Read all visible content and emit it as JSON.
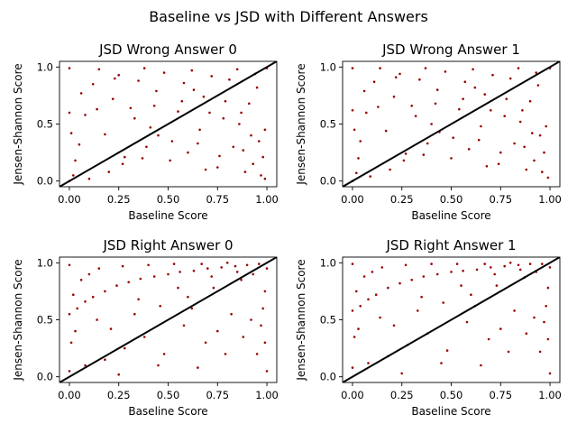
{
  "figure": {
    "suptitle": "Baseline vs JSD with Different Answers"
  },
  "colors": {
    "points": "#990000",
    "diagonal": "#000000",
    "axes": "#000000",
    "background": "#ffffff"
  },
  "chart_data": [
    {
      "type": "scatter",
      "title": "JSD Wrong Answer 0",
      "xlabel": "Baseline Score",
      "ylabel": "Jensen-Shannon Score",
      "xlim": [
        -0.05,
        1.05
      ],
      "ylim": [
        -0.05,
        1.05
      ],
      "xticks": [
        "0.00",
        "0.25",
        "0.50",
        "0.75",
        "1.00"
      ],
      "yticks": [
        "0.0",
        "0.5",
        "1.0"
      ],
      "reference_line": "y = x",
      "points": [
        [
          0.02,
          0.05
        ],
        [
          0.05,
          0.32
        ],
        [
          0.08,
          0.58
        ],
        [
          0.12,
          0.85
        ],
        [
          0.15,
          0.98
        ],
        [
          0.18,
          0.41
        ],
        [
          0.22,
          0.72
        ],
        [
          0.25,
          0.93
        ],
        [
          0.28,
          0.21
        ],
        [
          0.31,
          0.64
        ],
        [
          0.35,
          0.88
        ],
        [
          0.38,
          0.99
        ],
        [
          0.41,
          0.47
        ],
        [
          0.44,
          0.79
        ],
        [
          0.48,
          0.95
        ],
        [
          0.51,
          0.18
        ],
        [
          0.55,
          0.61
        ],
        [
          0.58,
          0.86
        ],
        [
          0.62,
          0.97
        ],
        [
          0.65,
          0.33
        ],
        [
          0.68,
          0.74
        ],
        [
          0.72,
          0.92
        ],
        [
          0.75,
          0.12
        ],
        [
          0.78,
          0.55
        ],
        [
          0.81,
          0.89
        ],
        [
          0.85,
          0.98
        ],
        [
          0.88,
          0.27
        ],
        [
          0.91,
          0.68
        ],
        [
          0.94,
          0.94
        ],
        [
          0.97,
          0.05
        ],
        [
          0.99,
          0.45
        ],
        [
          1.0,
          0.99
        ],
        [
          0.99,
          0.02
        ],
        [
          0.98,
          0.21
        ],
        [
          0.96,
          0.35
        ],
        [
          0.93,
          0.15
        ],
        [
          0.89,
          0.08
        ],
        [
          0.83,
          0.3
        ],
        [
          0.76,
          0.22
        ],
        [
          0.69,
          0.1
        ],
        [
          0.6,
          0.25
        ],
        [
          0.52,
          0.35
        ],
        [
          0.45,
          0.4
        ],
        [
          0.37,
          0.2
        ],
        [
          0.27,
          0.15
        ],
        [
          0.2,
          0.08
        ],
        [
          0.1,
          0.02
        ],
        [
          0.03,
          0.18
        ],
        [
          0.0,
          0.0
        ],
        [
          0.0,
          0.6
        ],
        [
          0.0,
          0.99
        ],
        [
          0.01,
          0.42
        ],
        [
          0.06,
          0.77
        ],
        [
          0.14,
          0.63
        ],
        [
          0.33,
          0.55
        ],
        [
          0.57,
          0.7
        ],
        [
          0.71,
          0.6
        ],
        [
          0.86,
          0.5
        ],
        [
          0.92,
          0.4
        ],
        [
          0.95,
          0.82
        ],
        [
          0.23,
          0.9
        ],
        [
          0.43,
          0.66
        ],
        [
          0.63,
          0.8
        ],
        [
          0.79,
          0.7
        ],
        [
          0.39,
          0.3
        ],
        [
          0.66,
          0.45
        ],
        [
          0.87,
          0.6
        ]
      ]
    },
    {
      "type": "scatter",
      "title": "JSD Wrong Answer 1",
      "xlabel": "Baseline Score",
      "ylabel": "Jensen-Shannon Score",
      "xlim": [
        -0.05,
        1.05
      ],
      "ylim": [
        -0.05,
        1.05
      ],
      "xticks": [
        "0.00",
        "0.25",
        "0.50",
        "0.75",
        "1.00"
      ],
      "yticks": [
        "0.0",
        "0.5",
        "1.0"
      ],
      "reference_line": "y = x",
      "points": [
        [
          0.02,
          0.07
        ],
        [
          0.04,
          0.35
        ],
        [
          0.07,
          0.6
        ],
        [
          0.11,
          0.87
        ],
        [
          0.14,
          0.99
        ],
        [
          0.17,
          0.44
        ],
        [
          0.21,
          0.74
        ],
        [
          0.24,
          0.94
        ],
        [
          0.27,
          0.24
        ],
        [
          0.3,
          0.66
        ],
        [
          0.34,
          0.89
        ],
        [
          0.37,
          0.99
        ],
        [
          0.4,
          0.5
        ],
        [
          0.43,
          0.8
        ],
        [
          0.47,
          0.96
        ],
        [
          0.5,
          0.2
        ],
        [
          0.54,
          0.63
        ],
        [
          0.57,
          0.87
        ],
        [
          0.61,
          0.98
        ],
        [
          0.64,
          0.36
        ],
        [
          0.67,
          0.76
        ],
        [
          0.71,
          0.93
        ],
        [
          0.74,
          0.15
        ],
        [
          0.77,
          0.57
        ],
        [
          0.8,
          0.9
        ],
        [
          0.84,
          0.99
        ],
        [
          0.87,
          0.3
        ],
        [
          0.9,
          0.7
        ],
        [
          0.93,
          0.95
        ],
        [
          0.96,
          0.08
        ],
        [
          0.98,
          0.48
        ],
        [
          1.0,
          0.99
        ],
        [
          0.99,
          0.03
        ],
        [
          0.97,
          0.25
        ],
        [
          0.95,
          0.4
        ],
        [
          0.92,
          0.18
        ],
        [
          0.88,
          0.1
        ],
        [
          0.82,
          0.33
        ],
        [
          0.75,
          0.25
        ],
        [
          0.68,
          0.13
        ],
        [
          0.59,
          0.28
        ],
        [
          0.51,
          0.38
        ],
        [
          0.44,
          0.43
        ],
        [
          0.36,
          0.23
        ],
        [
          0.26,
          0.18
        ],
        [
          0.19,
          0.1
        ],
        [
          0.09,
          0.04
        ],
        [
          0.03,
          0.2
        ],
        [
          0.0,
          0.0
        ],
        [
          0.0,
          0.62
        ],
        [
          0.0,
          0.99
        ],
        [
          0.01,
          0.45
        ],
        [
          0.06,
          0.79
        ],
        [
          0.13,
          0.65
        ],
        [
          0.32,
          0.57
        ],
        [
          0.56,
          0.72
        ],
        [
          0.7,
          0.62
        ],
        [
          0.85,
          0.52
        ],
        [
          0.91,
          0.42
        ],
        [
          0.94,
          0.84
        ],
        [
          0.22,
          0.91
        ],
        [
          0.42,
          0.68
        ],
        [
          0.62,
          0.82
        ],
        [
          0.78,
          0.72
        ],
        [
          0.38,
          0.33
        ],
        [
          0.65,
          0.48
        ],
        [
          0.86,
          0.62
        ]
      ]
    },
    {
      "type": "scatter",
      "title": "JSD Right Answer 0",
      "xlabel": "Baseline Score",
      "ylabel": "Jensen-Shannon Score",
      "xlim": [
        -0.05,
        1.05
      ],
      "ylim": [
        -0.05,
        1.05
      ],
      "xticks": [
        "0.00",
        "0.25",
        "0.50",
        "0.75",
        "1.00"
      ],
      "yticks": [
        "0.0",
        "0.5",
        "1.0"
      ],
      "reference_line": "y = x",
      "points": [
        [
          0.0,
          0.05
        ],
        [
          0.0,
          0.55
        ],
        [
          0.0,
          0.98
        ],
        [
          0.01,
          0.3
        ],
        [
          0.02,
          0.72
        ],
        [
          0.04,
          0.6
        ],
        [
          0.06,
          0.85
        ],
        [
          0.08,
          0.66
        ],
        [
          0.1,
          0.9
        ],
        [
          0.12,
          0.7
        ],
        [
          0.15,
          0.95
        ],
        [
          0.18,
          0.75
        ],
        [
          0.21,
          0.42
        ],
        [
          0.24,
          0.8
        ],
        [
          0.27,
          0.97
        ],
        [
          0.3,
          0.83
        ],
        [
          0.33,
          0.55
        ],
        [
          0.36,
          0.86
        ],
        [
          0.4,
          0.98
        ],
        [
          0.43,
          0.88
        ],
        [
          0.46,
          0.62
        ],
        [
          0.5,
          0.9
        ],
        [
          0.53,
          0.99
        ],
        [
          0.56,
          0.92
        ],
        [
          0.6,
          0.7
        ],
        [
          0.63,
          0.93
        ],
        [
          0.67,
          0.99
        ],
        [
          0.7,
          0.95
        ],
        [
          0.73,
          0.78
        ],
        [
          0.77,
          0.96
        ],
        [
          0.8,
          1.0
        ],
        [
          0.84,
          0.97
        ],
        [
          0.87,
          0.85
        ],
        [
          0.9,
          0.98
        ],
        [
          0.93,
          0.9
        ],
        [
          0.96,
          0.99
        ],
        [
          0.98,
          0.6
        ],
        [
          0.99,
          0.3
        ],
        [
          1.0,
          0.05
        ],
        [
          1.0,
          0.95
        ],
        [
          0.99,
          0.75
        ],
        [
          0.97,
          0.45
        ],
        [
          0.95,
          0.2
        ],
        [
          0.92,
          0.5
        ],
        [
          0.88,
          0.35
        ],
        [
          0.82,
          0.55
        ],
        [
          0.75,
          0.4
        ],
        [
          0.69,
          0.3
        ],
        [
          0.58,
          0.45
        ],
        [
          0.48,
          0.2
        ],
        [
          0.38,
          0.35
        ],
        [
          0.28,
          0.25
        ],
        [
          0.18,
          0.15
        ],
        [
          0.08,
          0.1
        ],
        [
          0.03,
          0.4
        ],
        [
          0.14,
          0.5
        ],
        [
          0.35,
          0.68
        ],
        [
          0.55,
          0.78
        ],
        [
          0.72,
          0.88
        ],
        [
          0.85,
          0.92
        ],
        [
          0.45,
          0.1
        ],
        [
          0.65,
          0.08
        ],
        [
          0.25,
          0.02
        ],
        [
          0.79,
          0.2
        ],
        [
          0.62,
          0.6
        ]
      ]
    },
    {
      "type": "scatter",
      "title": "JSD Right Answer 1",
      "xlabel": "Baseline Score",
      "ylabel": "Jensen-Shannon Score",
      "xlim": [
        -0.05,
        1.05
      ],
      "ylim": [
        -0.05,
        1.05
      ],
      "xticks": [
        "0.00",
        "0.25",
        "0.50",
        "0.75",
        "1.00"
      ],
      "yticks": [
        "0.0",
        "0.5",
        "1.0"
      ],
      "reference_line": "y = x",
      "points": [
        [
          0.0,
          0.08
        ],
        [
          0.0,
          0.58
        ],
        [
          0.0,
          0.99
        ],
        [
          0.01,
          0.35
        ],
        [
          0.02,
          0.75
        ],
        [
          0.04,
          0.62
        ],
        [
          0.06,
          0.88
        ],
        [
          0.08,
          0.68
        ],
        [
          0.1,
          0.92
        ],
        [
          0.12,
          0.72
        ],
        [
          0.15,
          0.96
        ],
        [
          0.18,
          0.78
        ],
        [
          0.21,
          0.45
        ],
        [
          0.24,
          0.82
        ],
        [
          0.27,
          0.98
        ],
        [
          0.3,
          0.85
        ],
        [
          0.33,
          0.58
        ],
        [
          0.36,
          0.88
        ],
        [
          0.4,
          0.99
        ],
        [
          0.43,
          0.9
        ],
        [
          0.46,
          0.65
        ],
        [
          0.5,
          0.92
        ],
        [
          0.53,
          0.99
        ],
        [
          0.56,
          0.93
        ],
        [
          0.6,
          0.72
        ],
        [
          0.63,
          0.94
        ],
        [
          0.67,
          0.99
        ],
        [
          0.7,
          0.96
        ],
        [
          0.73,
          0.8
        ],
        [
          0.77,
          0.97
        ],
        [
          0.8,
          1.0
        ],
        [
          0.84,
          0.98
        ],
        [
          0.87,
          0.87
        ],
        [
          0.9,
          0.99
        ],
        [
          0.93,
          0.92
        ],
        [
          0.96,
          0.99
        ],
        [
          0.98,
          0.62
        ],
        [
          0.99,
          0.33
        ],
        [
          1.0,
          0.03
        ],
        [
          1.0,
          0.96
        ],
        [
          0.99,
          0.78
        ],
        [
          0.97,
          0.48
        ],
        [
          0.95,
          0.22
        ],
        [
          0.92,
          0.52
        ],
        [
          0.88,
          0.38
        ],
        [
          0.82,
          0.58
        ],
        [
          0.75,
          0.42
        ],
        [
          0.69,
          0.33
        ],
        [
          0.58,
          0.48
        ],
        [
          0.48,
          0.23
        ],
        [
          0.38,
          0.38
        ],
        [
          0.28,
          0.28
        ],
        [
          0.18,
          0.18
        ],
        [
          0.08,
          0.12
        ],
        [
          0.03,
          0.42
        ],
        [
          0.14,
          0.52
        ],
        [
          0.35,
          0.7
        ],
        [
          0.55,
          0.8
        ],
        [
          0.72,
          0.9
        ],
        [
          0.85,
          0.94
        ],
        [
          0.45,
          0.12
        ],
        [
          0.65,
          0.1
        ],
        [
          0.25,
          0.03
        ],
        [
          0.79,
          0.22
        ],
        [
          0.62,
          0.62
        ]
      ]
    }
  ]
}
